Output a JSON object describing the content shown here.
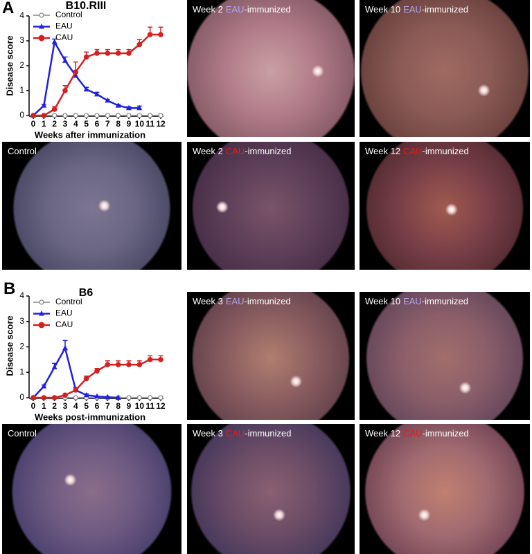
{
  "chart_data": [
    {
      "type": "line",
      "title": "B10.RIII",
      "xlabel": "Weeks after immunization",
      "ylabel": "Disease score",
      "x": [
        0,
        1,
        2,
        3,
        4,
        5,
        6,
        7,
        8,
        9,
        10,
        11,
        12
      ],
      "xlim": [
        0,
        12
      ],
      "xticks": [
        0,
        1,
        2,
        3,
        4,
        5,
        6,
        7,
        8,
        9,
        10,
        11,
        12
      ],
      "ylim": [
        0,
        4
      ],
      "yticks": [
        0,
        1,
        2,
        3,
        4
      ],
      "series": [
        {
          "name": "Control",
          "color": "#8a8a8a",
          "marker": "circle-open",
          "values": [
            0,
            0,
            0,
            0,
            0,
            0,
            0,
            0,
            0,
            0,
            0,
            0,
            0
          ],
          "errors": [
            null,
            null,
            null,
            null,
            null,
            null,
            null,
            null,
            null,
            null,
            null,
            null,
            null
          ]
        },
        {
          "name": "EAU",
          "color": "#2020e0",
          "marker": "triangle",
          "values": [
            0,
            0.4,
            2.95,
            2.2,
            1.6,
            1.05,
            0.85,
            0.6,
            0.4,
            0.3,
            0.3,
            null,
            null
          ],
          "errors": [
            null,
            0.05,
            0.12,
            0.15,
            0.1,
            0.08,
            0.08,
            0.05,
            0.05,
            0.05,
            0.08,
            null,
            null
          ]
        },
        {
          "name": "CAU",
          "color": "#d42020",
          "marker": "circle",
          "values": [
            0,
            0,
            0.25,
            1.0,
            1.75,
            2.35,
            2.5,
            2.5,
            2.5,
            2.5,
            2.85,
            3.25,
            3.25
          ],
          "errors": [
            null,
            null,
            0.1,
            0.2,
            0.4,
            0.2,
            0.15,
            0.15,
            0.15,
            0.15,
            0.2,
            0.3,
            0.3
          ]
        }
      ]
    },
    {
      "type": "line",
      "title": "B6",
      "xlabel": "Weeks post-immunization",
      "ylabel": "Disease score",
      "x": [
        0,
        1,
        2,
        3,
        4,
        5,
        6,
        7,
        8,
        9,
        10,
        11,
        12
      ],
      "xlim": [
        0,
        12
      ],
      "xticks": [
        0,
        1,
        2,
        3,
        4,
        5,
        6,
        7,
        8,
        9,
        10,
        11,
        12
      ],
      "ylim": [
        0,
        4
      ],
      "yticks": [
        0,
        1,
        2,
        3,
        4
      ],
      "series": [
        {
          "name": "Control",
          "color": "#8a8a8a",
          "marker": "circle-open",
          "values": [
            0,
            0,
            0,
            0,
            0,
            0,
            0,
            0,
            0,
            0,
            0,
            0,
            0
          ],
          "errors": [
            null,
            null,
            null,
            null,
            null,
            null,
            null,
            null,
            null,
            null,
            null,
            null,
            null
          ]
        },
        {
          "name": "EAU",
          "color": "#2020e0",
          "marker": "triangle",
          "values": [
            0,
            0.45,
            1.2,
            1.95,
            0.3,
            0.1,
            0.05,
            0.02,
            0,
            null,
            null,
            null,
            null
          ],
          "errors": [
            null,
            0.05,
            0.15,
            0.3,
            0.1,
            0.05,
            null,
            null,
            null,
            null,
            null,
            null,
            null
          ]
        },
        {
          "name": "CAU",
          "color": "#d42020",
          "marker": "circle",
          "values": [
            0,
            0,
            0,
            0.1,
            0.3,
            0.75,
            1.05,
            1.3,
            1.3,
            1.3,
            1.3,
            1.5,
            1.5
          ],
          "errors": [
            null,
            null,
            null,
            0.05,
            0.08,
            0.1,
            0.1,
            0.15,
            0.15,
            0.15,
            0.15,
            0.15,
            0.15
          ]
        }
      ]
    }
  ],
  "panels": [
    {
      "label": "A",
      "images": [
        {
          "week": "Week 2",
          "group": "EAU",
          "suffix": "-immunized"
        },
        {
          "week": "Week 10",
          "group": "EAU",
          "suffix": "-immunized"
        },
        {
          "week": "Control"
        },
        {
          "week": "Week 2",
          "group": "CAU",
          "suffix": "-immunized"
        },
        {
          "week": "Week 12",
          "group": "CAU",
          "suffix": "-immunized"
        }
      ]
    },
    {
      "label": "B",
      "images": [
        {
          "week": "Week 3",
          "group": "EAU",
          "suffix": "-immunized"
        },
        {
          "week": "Week 10",
          "group": "EAU",
          "suffix": "-immunized"
        },
        {
          "week": "Control"
        },
        {
          "week": "Week 3",
          "group": "CAU",
          "suffix": "-immunized"
        },
        {
          "week": "Week 12",
          "group": "CAU",
          "suffix": "-immunized"
        }
      ]
    }
  ]
}
